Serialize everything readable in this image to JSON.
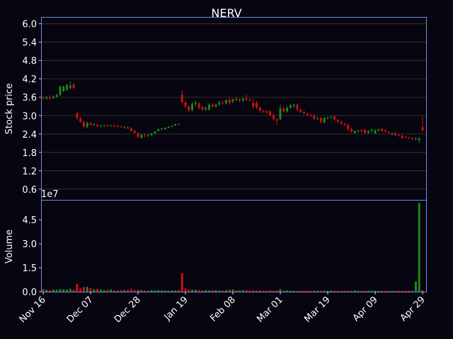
{
  "chart_data": {
    "type": "candlestick",
    "title": "NERV",
    "ylabel_price": "Stock price",
    "ylabel_volume": "Volume",
    "volume_exponent": "1e7",
    "price_ticks": [
      "0.6",
      "1.2",
      "1.8",
      "2.4",
      "3.0",
      "3.6",
      "4.2",
      "4.8",
      "5.4",
      "6.0"
    ],
    "price_ylim": [
      0.25,
      6.2
    ],
    "volume_ticks": [
      "0.0",
      "1.5",
      "3.0",
      "4.5"
    ],
    "volume_ylim": [
      0,
      5.7
    ],
    "volume_unit": "1e7",
    "x_ticks": [
      "Nov 16",
      "Dec 07",
      "Dec 28",
      "Jan 19",
      "Feb 08",
      "Mar 01",
      "Mar 19",
      "Apr 09",
      "Apr 29"
    ],
    "colors": {
      "up": "#1a8a1a",
      "down": "#d01010",
      "background": "#07050f",
      "axes_border": "#6a8ef0",
      "grid": "#3a3a3a"
    },
    "dates": [
      "11-16",
      "11-17",
      "11-18",
      "11-19",
      "11-20",
      "11-23",
      "11-24",
      "11-25",
      "11-27",
      "11-30",
      "12-01",
      "12-02",
      "12-03",
      "12-04",
      "12-07",
      "12-08",
      "12-09",
      "12-10",
      "12-11",
      "12-14",
      "12-15",
      "12-16",
      "12-17",
      "12-18",
      "12-21",
      "12-22",
      "12-23",
      "12-24",
      "12-28",
      "12-29",
      "12-30",
      "12-31",
      "01-04",
      "01-05",
      "01-06",
      "01-07",
      "01-08",
      "01-11",
      "01-12",
      "01-13",
      "01-14",
      "01-15",
      "01-19",
      "01-20",
      "01-21",
      "01-22",
      "01-25",
      "01-26",
      "01-27",
      "01-28",
      "01-29",
      "02-01",
      "02-02",
      "02-03",
      "02-04",
      "02-05",
      "02-08",
      "02-09",
      "02-10",
      "02-11",
      "02-12",
      "02-16",
      "02-17",
      "02-18",
      "02-19",
      "02-22",
      "02-23",
      "02-24",
      "02-25",
      "02-26",
      "03-01",
      "03-02",
      "03-03",
      "03-04",
      "03-05",
      "03-08",
      "03-09",
      "03-10",
      "03-11",
      "03-12",
      "03-15",
      "03-16",
      "03-17",
      "03-18",
      "03-19",
      "03-22",
      "03-23",
      "03-24",
      "03-25",
      "03-26",
      "03-29",
      "03-30",
      "03-31",
      "04-01",
      "04-05",
      "04-06",
      "04-07",
      "04-08",
      "04-09",
      "04-12",
      "04-13",
      "04-14",
      "04-15",
      "04-16",
      "04-19",
      "04-20",
      "04-21",
      "04-22",
      "04-23",
      "04-26",
      "04-27",
      "04-28",
      "04-29"
    ],
    "ohlc": [
      [
        3.58,
        3.64,
        3.52,
        3.56
      ],
      [
        3.56,
        3.64,
        3.52,
        3.6
      ],
      [
        3.58,
        3.66,
        3.52,
        3.56
      ],
      [
        3.57,
        3.66,
        3.54,
        3.62
      ],
      [
        3.62,
        3.72,
        3.58,
        3.68
      ],
      [
        3.68,
        3.98,
        3.64,
        3.95
      ],
      [
        3.8,
        3.98,
        3.76,
        3.95
      ],
      [
        3.85,
        4.04,
        3.8,
        4.0
      ],
      [
        3.9,
        4.12,
        3.85,
        3.98
      ],
      [
        4.02,
        4.06,
        3.88,
        3.9
      ],
      [
        3.08,
        3.12,
        2.86,
        2.92
      ],
      [
        2.92,
        2.96,
        2.76,
        2.8
      ],
      [
        2.8,
        2.84,
        2.6,
        2.64
      ],
      [
        2.64,
        2.8,
        2.58,
        2.76
      ],
      [
        2.75,
        2.8,
        2.68,
        2.7
      ],
      [
        2.7,
        2.76,
        2.66,
        2.72
      ],
      [
        2.7,
        2.74,
        2.62,
        2.66
      ],
      [
        2.66,
        2.7,
        2.62,
        2.68
      ],
      [
        2.66,
        2.7,
        2.64,
        2.68
      ],
      [
        2.68,
        2.72,
        2.64,
        2.66
      ],
      [
        2.66,
        2.7,
        2.64,
        2.68
      ],
      [
        2.68,
        2.72,
        2.62,
        2.66
      ],
      [
        2.66,
        2.7,
        2.62,
        2.64
      ],
      [
        2.64,
        2.68,
        2.6,
        2.62
      ],
      [
        2.62,
        2.66,
        2.58,
        2.64
      ],
      [
        2.62,
        2.66,
        2.56,
        2.58
      ],
      [
        2.58,
        2.62,
        2.48,
        2.5
      ],
      [
        2.5,
        2.54,
        2.42,
        2.44
      ],
      [
        2.42,
        2.46,
        2.26,
        2.3
      ],
      [
        2.28,
        2.4,
        2.24,
        2.38
      ],
      [
        2.36,
        2.42,
        2.3,
        2.34
      ],
      [
        2.34,
        2.4,
        2.3,
        2.36
      ],
      [
        2.36,
        2.44,
        2.34,
        2.42
      ],
      [
        2.42,
        2.5,
        2.4,
        2.48
      ],
      [
        2.5,
        2.58,
        2.48,
        2.56
      ],
      [
        2.56,
        2.6,
        2.52,
        2.58
      ],
      [
        2.56,
        2.62,
        2.54,
        2.6
      ],
      [
        2.6,
        2.66,
        2.58,
        2.64
      ],
      [
        2.64,
        2.7,
        2.62,
        2.66
      ],
      [
        2.68,
        2.74,
        2.66,
        2.72
      ],
      [
        2.72,
        2.76,
        2.7,
        2.7
      ],
      [
        3.68,
        3.82,
        3.4,
        3.44
      ],
      [
        3.44,
        3.46,
        3.24,
        3.3
      ],
      [
        3.3,
        3.34,
        3.12,
        3.18
      ],
      [
        3.18,
        3.44,
        3.14,
        3.38
      ],
      [
        3.38,
        3.5,
        3.3,
        3.42
      ],
      [
        3.4,
        3.44,
        3.2,
        3.26
      ],
      [
        3.28,
        3.32,
        3.14,
        3.2
      ],
      [
        3.2,
        3.3,
        3.14,
        3.26
      ],
      [
        3.2,
        3.4,
        3.16,
        3.36
      ],
      [
        3.36,
        3.42,
        3.26,
        3.3
      ],
      [
        3.3,
        3.4,
        3.26,
        3.36
      ],
      [
        3.36,
        3.48,
        3.32,
        3.44
      ],
      [
        3.42,
        3.5,
        3.36,
        3.4
      ],
      [
        3.4,
        3.54,
        3.36,
        3.5
      ],
      [
        3.52,
        3.6,
        3.36,
        3.42
      ],
      [
        3.46,
        3.56,
        3.4,
        3.54
      ],
      [
        3.56,
        3.62,
        3.48,
        3.5
      ],
      [
        3.5,
        3.56,
        3.44,
        3.52
      ],
      [
        3.5,
        3.58,
        3.44,
        3.56
      ],
      [
        3.56,
        3.7,
        3.48,
        3.52
      ],
      [
        3.52,
        3.58,
        3.46,
        3.48
      ],
      [
        3.42,
        3.56,
        3.22,
        3.3
      ],
      [
        3.42,
        3.48,
        3.2,
        3.26
      ],
      [
        3.26,
        3.3,
        3.1,
        3.16
      ],
      [
        3.16,
        3.2,
        3.08,
        3.14
      ],
      [
        3.14,
        3.18,
        3.06,
        3.1
      ],
      [
        3.14,
        3.18,
        2.98,
        3.02
      ],
      [
        3.02,
        3.06,
        2.84,
        2.88
      ],
      [
        2.88,
        2.92,
        2.7,
        2.84
      ],
      [
        2.88,
        3.36,
        2.84,
        3.24
      ],
      [
        3.24,
        3.28,
        3.1,
        3.14
      ],
      [
        3.14,
        3.3,
        3.1,
        3.26
      ],
      [
        3.26,
        3.38,
        3.22,
        3.34
      ],
      [
        3.32,
        3.38,
        3.24,
        3.36
      ],
      [
        3.36,
        3.4,
        3.14,
        3.2
      ],
      [
        3.2,
        3.24,
        3.1,
        3.12
      ],
      [
        3.12,
        3.16,
        3.04,
        3.08
      ],
      [
        3.06,
        3.1,
        2.98,
        3.02
      ],
      [
        3.02,
        3.06,
        2.96,
        3.0
      ],
      [
        3.02,
        3.06,
        2.86,
        2.9
      ],
      [
        2.9,
        2.96,
        2.86,
        2.92
      ],
      [
        2.92,
        2.96,
        2.74,
        2.8
      ],
      [
        2.78,
        2.96,
        2.74,
        2.92
      ],
      [
        2.92,
        2.96,
        2.88,
        2.94
      ],
      [
        2.94,
        3.0,
        2.9,
        2.96
      ],
      [
        2.98,
        3.02,
        2.86,
        2.88
      ],
      [
        2.86,
        2.9,
        2.76,
        2.8
      ],
      [
        2.8,
        2.84,
        2.7,
        2.74
      ],
      [
        2.74,
        2.78,
        2.66,
        2.7
      ],
      [
        2.7,
        2.74,
        2.5,
        2.56
      ],
      [
        2.56,
        2.6,
        2.44,
        2.48
      ],
      [
        2.44,
        2.52,
        2.4,
        2.5
      ],
      [
        2.5,
        2.54,
        2.44,
        2.52
      ],
      [
        2.52,
        2.56,
        2.46,
        2.48
      ],
      [
        2.54,
        2.58,
        2.4,
        2.44
      ],
      [
        2.44,
        2.52,
        2.4,
        2.5
      ],
      [
        2.5,
        2.58,
        2.46,
        2.54
      ],
      [
        2.42,
        2.56,
        2.4,
        2.52
      ],
      [
        2.52,
        2.58,
        2.48,
        2.56
      ],
      [
        2.56,
        2.6,
        2.48,
        2.5
      ],
      [
        2.52,
        2.56,
        2.46,
        2.48
      ],
      [
        2.46,
        2.5,
        2.4,
        2.44
      ],
      [
        2.4,
        2.46,
        2.36,
        2.42
      ],
      [
        2.42,
        2.48,
        2.34,
        2.36
      ],
      [
        2.36,
        2.4,
        2.32,
        2.34
      ],
      [
        2.34,
        2.38,
        2.24,
        2.28
      ],
      [
        2.3,
        2.34,
        2.26,
        2.28
      ],
      [
        2.28,
        2.32,
        2.24,
        2.26
      ],
      [
        2.26,
        2.3,
        2.2,
        2.24
      ],
      [
        2.24,
        2.3,
        2.18,
        2.26
      ],
      [
        2.2,
        2.3,
        2.1,
        2.26
      ],
      [
        2.62,
        3.0,
        2.48,
        2.52
      ]
    ],
    "volume": [
      0.18,
      0.12,
      0.1,
      0.14,
      0.12,
      0.16,
      0.14,
      0.13,
      0.18,
      0.12,
      0.5,
      0.2,
      0.3,
      0.3,
      0.22,
      0.16,
      0.18,
      0.14,
      0.1,
      0.12,
      0.14,
      0.1,
      0.08,
      0.1,
      0.1,
      0.12,
      0.16,
      0.1,
      0.12,
      0.1,
      0.08,
      0.06,
      0.1,
      0.08,
      0.1,
      0.08,
      0.08,
      0.06,
      0.08,
      0.08,
      0.1,
      1.16,
      0.2,
      0.14,
      0.12,
      0.12,
      0.1,
      0.08,
      0.1,
      0.08,
      0.1,
      0.1,
      0.08,
      0.08,
      0.1,
      0.14,
      0.14,
      0.1,
      0.08,
      0.1,
      0.1,
      0.08,
      0.1,
      0.08,
      0.08,
      0.06,
      0.06,
      0.08,
      0.06,
      0.08,
      0.16,
      0.08,
      0.08,
      0.06,
      0.06,
      0.06,
      0.06,
      0.06,
      0.06,
      0.06,
      0.08,
      0.06,
      0.06,
      0.06,
      0.06,
      0.06,
      0.06,
      0.06,
      0.06,
      0.06,
      0.06,
      0.06,
      0.08,
      0.06,
      0.06,
      0.06,
      0.06,
      0.06,
      0.06,
      0.06,
      0.06,
      0.06,
      0.06,
      0.06,
      0.06,
      0.06,
      0.06,
      0.06,
      0.06,
      0.06,
      0.64,
      5.55,
      0.1
    ]
  }
}
